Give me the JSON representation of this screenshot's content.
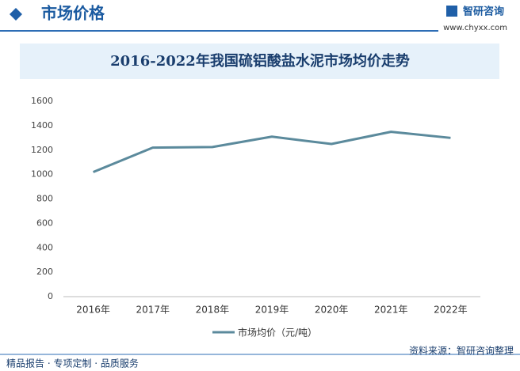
{
  "header": {
    "title": "市场价格",
    "brand": "智研咨询",
    "site": "www.chyxx.com"
  },
  "chart_data": {
    "type": "line",
    "title": "2016-2022年我国硫铝酸盐水泥市场均价走势",
    "categories": [
      "2016年",
      "2017年",
      "2018年",
      "2019年",
      "2020年",
      "2021年",
      "2022年"
    ],
    "series": [
      {
        "name": "市场均价（元/吨）",
        "color": "#5b8a9c",
        "values": [
          1020,
          1220,
          1225,
          1310,
          1250,
          1350,
          1300
        ]
      }
    ],
    "ylim": [
      0,
      1600
    ],
    "yticks": [
      0,
      200,
      400,
      600,
      800,
      1000,
      1200,
      1400,
      1600
    ],
    "grid": false,
    "legend": "bottom"
  },
  "footer": {
    "left": "精品报告 · 专项定制 · 品质服务",
    "source": "资料来源：智研咨询整理"
  }
}
